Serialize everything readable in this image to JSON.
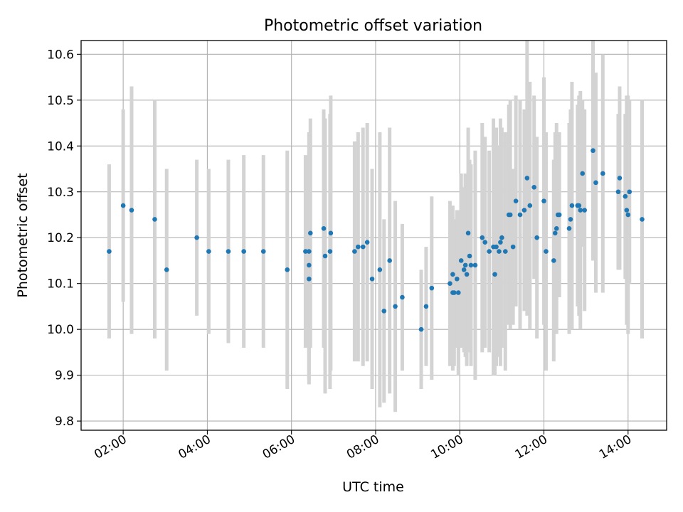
{
  "chart_data": {
    "type": "scatter",
    "title": "Photometric offset variation",
    "xlabel": "UTC time",
    "ylabel": "Photometric offset",
    "x_unit": "hours UTC",
    "xlim": [
      "01:00",
      "14:55"
    ],
    "ylim": [
      9.78,
      10.63
    ],
    "xticks": [
      "02:00",
      "04:00",
      "06:00",
      "08:00",
      "10:00",
      "12:00",
      "14:00"
    ],
    "yticks": [
      "9.8",
      "9.9",
      "10.0",
      "10.1",
      "10.2",
      "10.3",
      "10.4",
      "10.5",
      "10.6"
    ],
    "grid": true,
    "colors": {
      "point": "#1f77b4",
      "errorbar": "#d3d3d3",
      "grid": "#b0b0b0"
    },
    "series": [
      {
        "x": [
          "01:40",
          "02:00",
          "02:12",
          "02:45",
          "03:02",
          "03:45",
          "04:02",
          "04:30",
          "04:52",
          "05:20",
          "05:54",
          "06:20",
          "06:25",
          "06:25",
          "06:25",
          "06:27",
          "06:46",
          "06:48",
          "06:55",
          "06:56",
          "07:30",
          "07:35",
          "07:42",
          "07:48",
          "07:55",
          "08:06",
          "08:12",
          "08:20",
          "08:28",
          "08:38",
          "09:05",
          "09:12",
          "09:20",
          "09:46",
          "09:50",
          "09:50",
          "09:52",
          "09:56",
          "09:58",
          "10:02",
          "10:06",
          "10:08",
          "10:10",
          "10:12",
          "10:14",
          "10:16",
          "10:22",
          "10:32",
          "10:36",
          "10:42",
          "10:48",
          "10:50",
          "10:52",
          "10:56",
          "10:58",
          "11:00",
          "11:05",
          "11:10",
          "11:12",
          "11:16",
          "11:20",
          "11:26",
          "11:32",
          "11:36",
          "11:40",
          "11:46",
          "11:50",
          "12:00",
          "12:03",
          "12:14",
          "12:16",
          "12:18",
          "12:20",
          "12:22",
          "12:36",
          "12:38",
          "12:40",
          "12:48",
          "12:50",
          "12:52",
          "12:55",
          "12:58",
          "13:10",
          "13:14",
          "13:24",
          "13:46",
          "13:48",
          "13:56",
          "13:58",
          "14:00",
          "14:02",
          "14:20"
        ],
        "y": [
          10.17,
          10.27,
          10.26,
          10.24,
          10.13,
          10.2,
          10.17,
          10.17,
          10.17,
          10.17,
          10.13,
          10.17,
          10.11,
          10.14,
          10.17,
          10.21,
          10.22,
          10.16,
          10.17,
          10.21,
          10.17,
          10.18,
          10.18,
          10.19,
          10.11,
          10.13,
          10.04,
          10.15,
          10.05,
          10.07,
          10.0,
          10.05,
          10.09,
          10.1,
          10.08,
          10.12,
          10.08,
          10.11,
          10.08,
          10.15,
          10.13,
          10.14,
          10.12,
          10.21,
          10.16,
          10.14,
          10.14,
          10.2,
          10.19,
          10.17,
          10.18,
          10.12,
          10.18,
          10.17,
          10.19,
          10.2,
          10.17,
          10.25,
          10.25,
          10.18,
          10.28,
          10.25,
          10.26,
          10.33,
          10.27,
          10.31,
          10.2,
          10.28,
          10.17,
          10.15,
          10.21,
          10.22,
          10.25,
          10.25,
          10.22,
          10.24,
          10.27,
          10.27,
          10.27,
          10.26,
          10.34,
          10.26,
          10.39,
          10.32,
          10.34,
          10.3,
          10.33,
          10.29,
          10.26,
          10.25,
          10.3,
          10.24
        ],
        "err": [
          0.19,
          0.21,
          0.27,
          0.26,
          0.22,
          0.17,
          0.18,
          0.2,
          0.21,
          0.21,
          0.26,
          0.21,
          0.23,
          0.25,
          0.26,
          0.25,
          0.26,
          0.3,
          0.3,
          0.3,
          0.24,
          0.25,
          0.26,
          0.26,
          0.24,
          0.3,
          0.2,
          0.29,
          0.23,
          0.16,
          0.13,
          0.13,
          0.2,
          0.18,
          0.17,
          0.15,
          0.16,
          0.15,
          0.18,
          0.19,
          0.18,
          0.2,
          0.2,
          0.23,
          0.21,
          0.22,
          0.25,
          0.25,
          0.23,
          0.22,
          0.28,
          0.22,
          0.26,
          0.23,
          0.27,
          0.24,
          0.26,
          0.24,
          0.25,
          0.17,
          0.23,
          0.25,
          0.22,
          0.3,
          0.27,
          0.2,
          0.22,
          0.27,
          0.26,
          0.22,
          0.22,
          0.23,
          0.18,
          0.18,
          0.23,
          0.24,
          0.27,
          0.22,
          0.24,
          0.26,
          0.16,
          0.22,
          0.24,
          0.24,
          0.26,
          0.17,
          0.2,
          0.18,
          0.25,
          0.26,
          0.2,
          0.26
        ]
      }
    ]
  }
}
